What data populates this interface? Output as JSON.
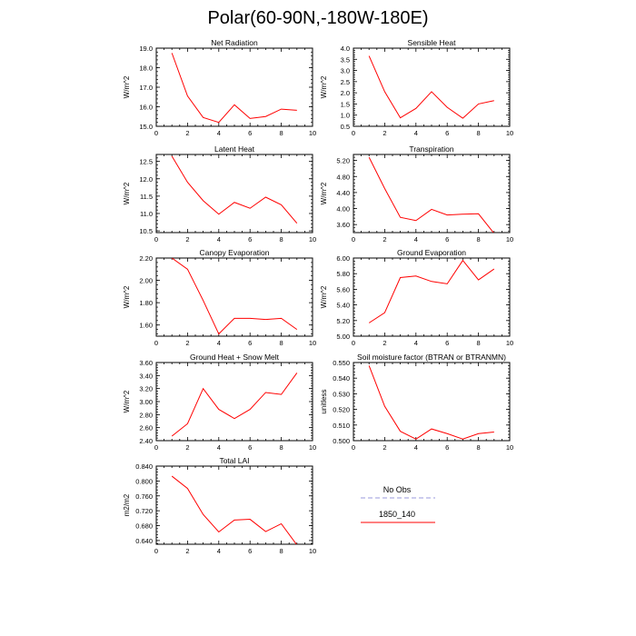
{
  "page_title": "Polar(60-90N,-180W-180E)",
  "colors": {
    "series": "#ff0000",
    "no_obs": "#9999dd",
    "axis": "#000000"
  },
  "legend": {
    "entries": [
      {
        "name": "No Obs",
        "color": "#9999dd",
        "dashed": true
      },
      {
        "name": "1850_140",
        "color": "#ff0000",
        "dashed": false
      }
    ]
  },
  "chart_data": [
    {
      "type": "line",
      "title": "Net Radiation",
      "ylabel": "W/m^2",
      "xlabel": "",
      "xlim": [
        0,
        10
      ],
      "xticks": [
        0,
        2,
        4,
        6,
        8,
        10
      ],
      "ylim": [
        15.0,
        19.0
      ],
      "yticks": [
        "15.0",
        "16.0",
        "17.0",
        "18.0",
        "19.0"
      ],
      "series": [
        {
          "name": "1850_140",
          "x": [
            1,
            2,
            3,
            4,
            5,
            6,
            7,
            8,
            9
          ],
          "y": [
            18.75,
            16.55,
            15.45,
            15.2,
            16.1,
            15.4,
            15.5,
            15.88,
            15.82
          ]
        }
      ]
    },
    {
      "type": "line",
      "title": "Sensible Heat",
      "ylabel": "W/m^2",
      "xlabel": "",
      "xlim": [
        0,
        10
      ],
      "xticks": [
        0,
        2,
        4,
        6,
        8,
        10
      ],
      "ylim": [
        0.5,
        4.0
      ],
      "yticks": [
        "0.5",
        "1.0",
        "1.5",
        "2.0",
        "2.5",
        "3.0",
        "3.5",
        "4.0"
      ],
      "series": [
        {
          "name": "1850_140",
          "x": [
            1,
            2,
            3,
            4,
            5,
            6,
            7,
            8,
            9
          ],
          "y": [
            3.65,
            2.05,
            0.88,
            1.3,
            2.05,
            1.35,
            0.86,
            1.5,
            1.65
          ]
        }
      ]
    },
    {
      "type": "line",
      "title": "Latent Heat",
      "ylabel": "W/m^2",
      "xlabel": "",
      "xlim": [
        0,
        10
      ],
      "xticks": [
        0,
        2,
        4,
        6,
        8,
        10
      ],
      "ylim": [
        10.45,
        12.7
      ],
      "yticks": [
        "10.5",
        "11.0",
        "11.5",
        "12.0",
        "12.5"
      ],
      "series": [
        {
          "name": "1850_140",
          "x": [
            1,
            2,
            3,
            4,
            5,
            6,
            7,
            8,
            9
          ],
          "y": [
            12.65,
            11.9,
            11.37,
            10.98,
            11.32,
            11.15,
            11.47,
            11.25,
            10.72
          ]
        }
      ]
    },
    {
      "type": "line",
      "title": "Transpiration",
      "ylabel": "W/m^2",
      "xlabel": "",
      "xlim": [
        0,
        10
      ],
      "xticks": [
        0,
        2,
        4,
        6,
        8,
        10
      ],
      "ylim": [
        3.4,
        5.35
      ],
      "yticks": [
        "3.60",
        "4.00",
        "4.40",
        "4.80",
        "5.20"
      ],
      "series": [
        {
          "name": "1850_140",
          "x": [
            1,
            2,
            3,
            4,
            5,
            6,
            7,
            8,
            9
          ],
          "y": [
            5.28,
            4.5,
            3.78,
            3.7,
            3.98,
            3.84,
            3.86,
            3.87,
            3.38
          ]
        }
      ]
    },
    {
      "type": "line",
      "title": "Canopy Evaporation",
      "ylabel": "W/m^2",
      "xlabel": "",
      "xlim": [
        0,
        10
      ],
      "xticks": [
        0,
        2,
        4,
        6,
        8,
        10
      ],
      "ylim": [
        1.5,
        2.2
      ],
      "yticks": [
        "1.60",
        "1.80",
        "2.00",
        "2.20"
      ],
      "series": [
        {
          "name": "1850_140",
          "x": [
            1,
            2,
            3,
            4,
            5,
            6,
            7,
            8,
            9
          ],
          "y": [
            2.2,
            2.1,
            1.82,
            1.52,
            1.66,
            1.66,
            1.65,
            1.66,
            1.56
          ]
        }
      ]
    },
    {
      "type": "line",
      "title": "Ground Evaporation",
      "ylabel": "W/m^2",
      "xlabel": "",
      "xlim": [
        0,
        10
      ],
      "xticks": [
        0,
        2,
        4,
        6,
        8,
        10
      ],
      "ylim": [
        5.0,
        6.0
      ],
      "yticks": [
        "5.00",
        "5.20",
        "5.40",
        "5.60",
        "5.80",
        "6.00"
      ],
      "series": [
        {
          "name": "1850_140",
          "x": [
            1,
            2,
            3,
            4,
            5,
            6,
            7,
            8,
            9
          ],
          "y": [
            5.17,
            5.3,
            5.75,
            5.77,
            5.7,
            5.67,
            5.97,
            5.72,
            5.86
          ]
        }
      ]
    },
    {
      "type": "line",
      "title": "Ground Heat + Snow Melt",
      "ylabel": "W/m^2",
      "xlabel": "",
      "xlim": [
        0,
        10
      ],
      "xticks": [
        0,
        2,
        4,
        6,
        8,
        10
      ],
      "ylim": [
        2.4,
        3.6
      ],
      "yticks": [
        "2.40",
        "2.60",
        "2.80",
        "3.00",
        "3.20",
        "3.40",
        "3.60"
      ],
      "series": [
        {
          "name": "1850_140",
          "x": [
            1,
            2,
            3,
            4,
            5,
            6,
            7,
            8,
            9
          ],
          "y": [
            2.47,
            2.66,
            3.2,
            2.88,
            2.74,
            2.88,
            3.14,
            3.11,
            3.44
          ]
        }
      ]
    },
    {
      "type": "line",
      "title": "Soil moisture factor (BTRAN or BTRANMN)",
      "ylabel": "unitless",
      "xlabel": "",
      "xlim": [
        0,
        10
      ],
      "xticks": [
        0,
        2,
        4,
        6,
        8,
        10
      ],
      "ylim": [
        0.5,
        0.55
      ],
      "yticks": [
        "0.500",
        "0.510",
        "0.520",
        "0.530",
        "0.540",
        "0.550"
      ],
      "series": [
        {
          "name": "1850_140",
          "x": [
            1,
            2,
            3,
            4,
            5,
            6,
            7,
            8,
            9
          ],
          "y": [
            0.548,
            0.522,
            0.506,
            0.501,
            0.5075,
            0.5045,
            0.501,
            0.5045,
            0.5055
          ]
        }
      ]
    },
    {
      "type": "line",
      "title": "Total LAI",
      "ylabel": "m2/m2",
      "xlabel": "",
      "xlim": [
        0,
        10
      ],
      "xticks": [
        0,
        2,
        4,
        6,
        8,
        10
      ],
      "ylim": [
        0.63,
        0.84
      ],
      "yticks": [
        "0.640",
        "0.680",
        "0.720",
        "0.760",
        "0.800",
        "0.840"
      ],
      "series": [
        {
          "name": "1850_140",
          "x": [
            1,
            2,
            3,
            4,
            5,
            6,
            7,
            8,
            9
          ],
          "y": [
            0.813,
            0.78,
            0.71,
            0.663,
            0.695,
            0.697,
            0.664,
            0.685,
            0.628
          ]
        }
      ]
    }
  ]
}
